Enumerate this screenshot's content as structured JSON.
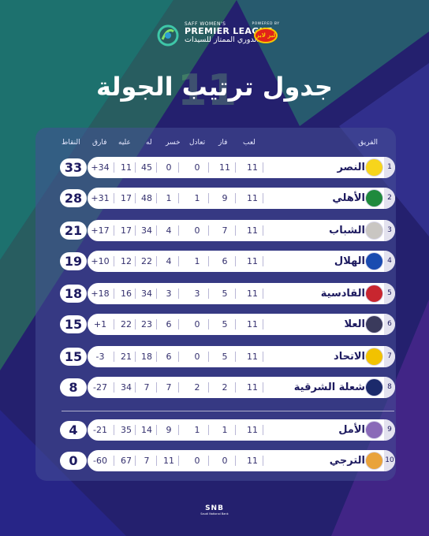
{
  "header": {
    "brand_small": "SAFF WOMEN'S",
    "league_en": "PREMIER LEAGUE",
    "league_ar": "الدوري الممتاز للسيدات",
    "sponsor_powered": "POWERED BY",
    "sponsor_name": "ليز لايز"
  },
  "title": {
    "text": "جدول ترتيب الجولة",
    "round_number": "11"
  },
  "columns": {
    "team": "الفريق",
    "played": "لعب",
    "won": "فاز",
    "drawn": "تعادل",
    "lost": "خسر",
    "goals_for": "له",
    "goals_against": "عليه",
    "goal_diff": "فارق",
    "points": "النقاط"
  },
  "rows": [
    {
      "rank": "1",
      "team": "النصر",
      "played": "11",
      "won": "11",
      "drawn": "0",
      "lost": "0",
      "gf": "45",
      "ga": "11",
      "gd": "+34",
      "pts": "33",
      "crest_color": "#f7d51c"
    },
    {
      "rank": "2",
      "team": "الأهلي",
      "played": "11",
      "won": "9",
      "drawn": "1",
      "lost": "1",
      "gf": "48",
      "ga": "17",
      "gd": "+31",
      "pts": "28",
      "crest_color": "#1f8a3d"
    },
    {
      "rank": "3",
      "team": "الشباب",
      "played": "11",
      "won": "7",
      "drawn": "0",
      "lost": "4",
      "gf": "34",
      "ga": "17",
      "gd": "+17",
      "pts": "21",
      "crest_color": "#c9c6c2"
    },
    {
      "rank": "4",
      "team": "الهلال",
      "played": "11",
      "won": "6",
      "drawn": "1",
      "lost": "4",
      "gf": "22",
      "ga": "12",
      "gd": "+10",
      "pts": "19",
      "crest_color": "#1a4bb0"
    },
    {
      "rank": "5",
      "team": "القادسية",
      "played": "11",
      "won": "5",
      "drawn": "3",
      "lost": "3",
      "gf": "34",
      "ga": "16",
      "gd": "+18",
      "pts": "18",
      "crest_color": "#c8262f"
    },
    {
      "rank": "6",
      "team": "العلا",
      "played": "11",
      "won": "5",
      "drawn": "0",
      "lost": "6",
      "gf": "23",
      "ga": "22",
      "gd": "+1",
      "pts": "15",
      "crest_color": "#3a3a5c"
    },
    {
      "rank": "7",
      "team": "الاتحاد",
      "played": "11",
      "won": "5",
      "drawn": "0",
      "lost": "6",
      "gf": "18",
      "ga": "21",
      "gd": "-3",
      "pts": "15",
      "crest_color": "#f2c200"
    },
    {
      "rank": "8",
      "team": "شعلة الشرقية",
      "played": "11",
      "won": "2",
      "drawn": "2",
      "lost": "7",
      "gf": "7",
      "ga": "34",
      "gd": "-27",
      "pts": "8",
      "crest_color": "#1b2a6b"
    },
    {
      "rank": "9",
      "team": "الأمل",
      "played": "11",
      "won": "1",
      "drawn": "1",
      "lost": "9",
      "gf": "14",
      "ga": "35",
      "gd": "-21",
      "pts": "4",
      "crest_color": "#8a6ab8"
    },
    {
      "rank": "10",
      "team": "الترجي",
      "played": "11",
      "won": "0",
      "drawn": "0",
      "lost": "11",
      "gf": "7",
      "ga": "67",
      "gd": "-60",
      "pts": "0",
      "crest_color": "#e9a33b"
    }
  ],
  "footer": {
    "sponsor": "SNB",
    "sponsor_sub": "Saudi National Bank"
  }
}
